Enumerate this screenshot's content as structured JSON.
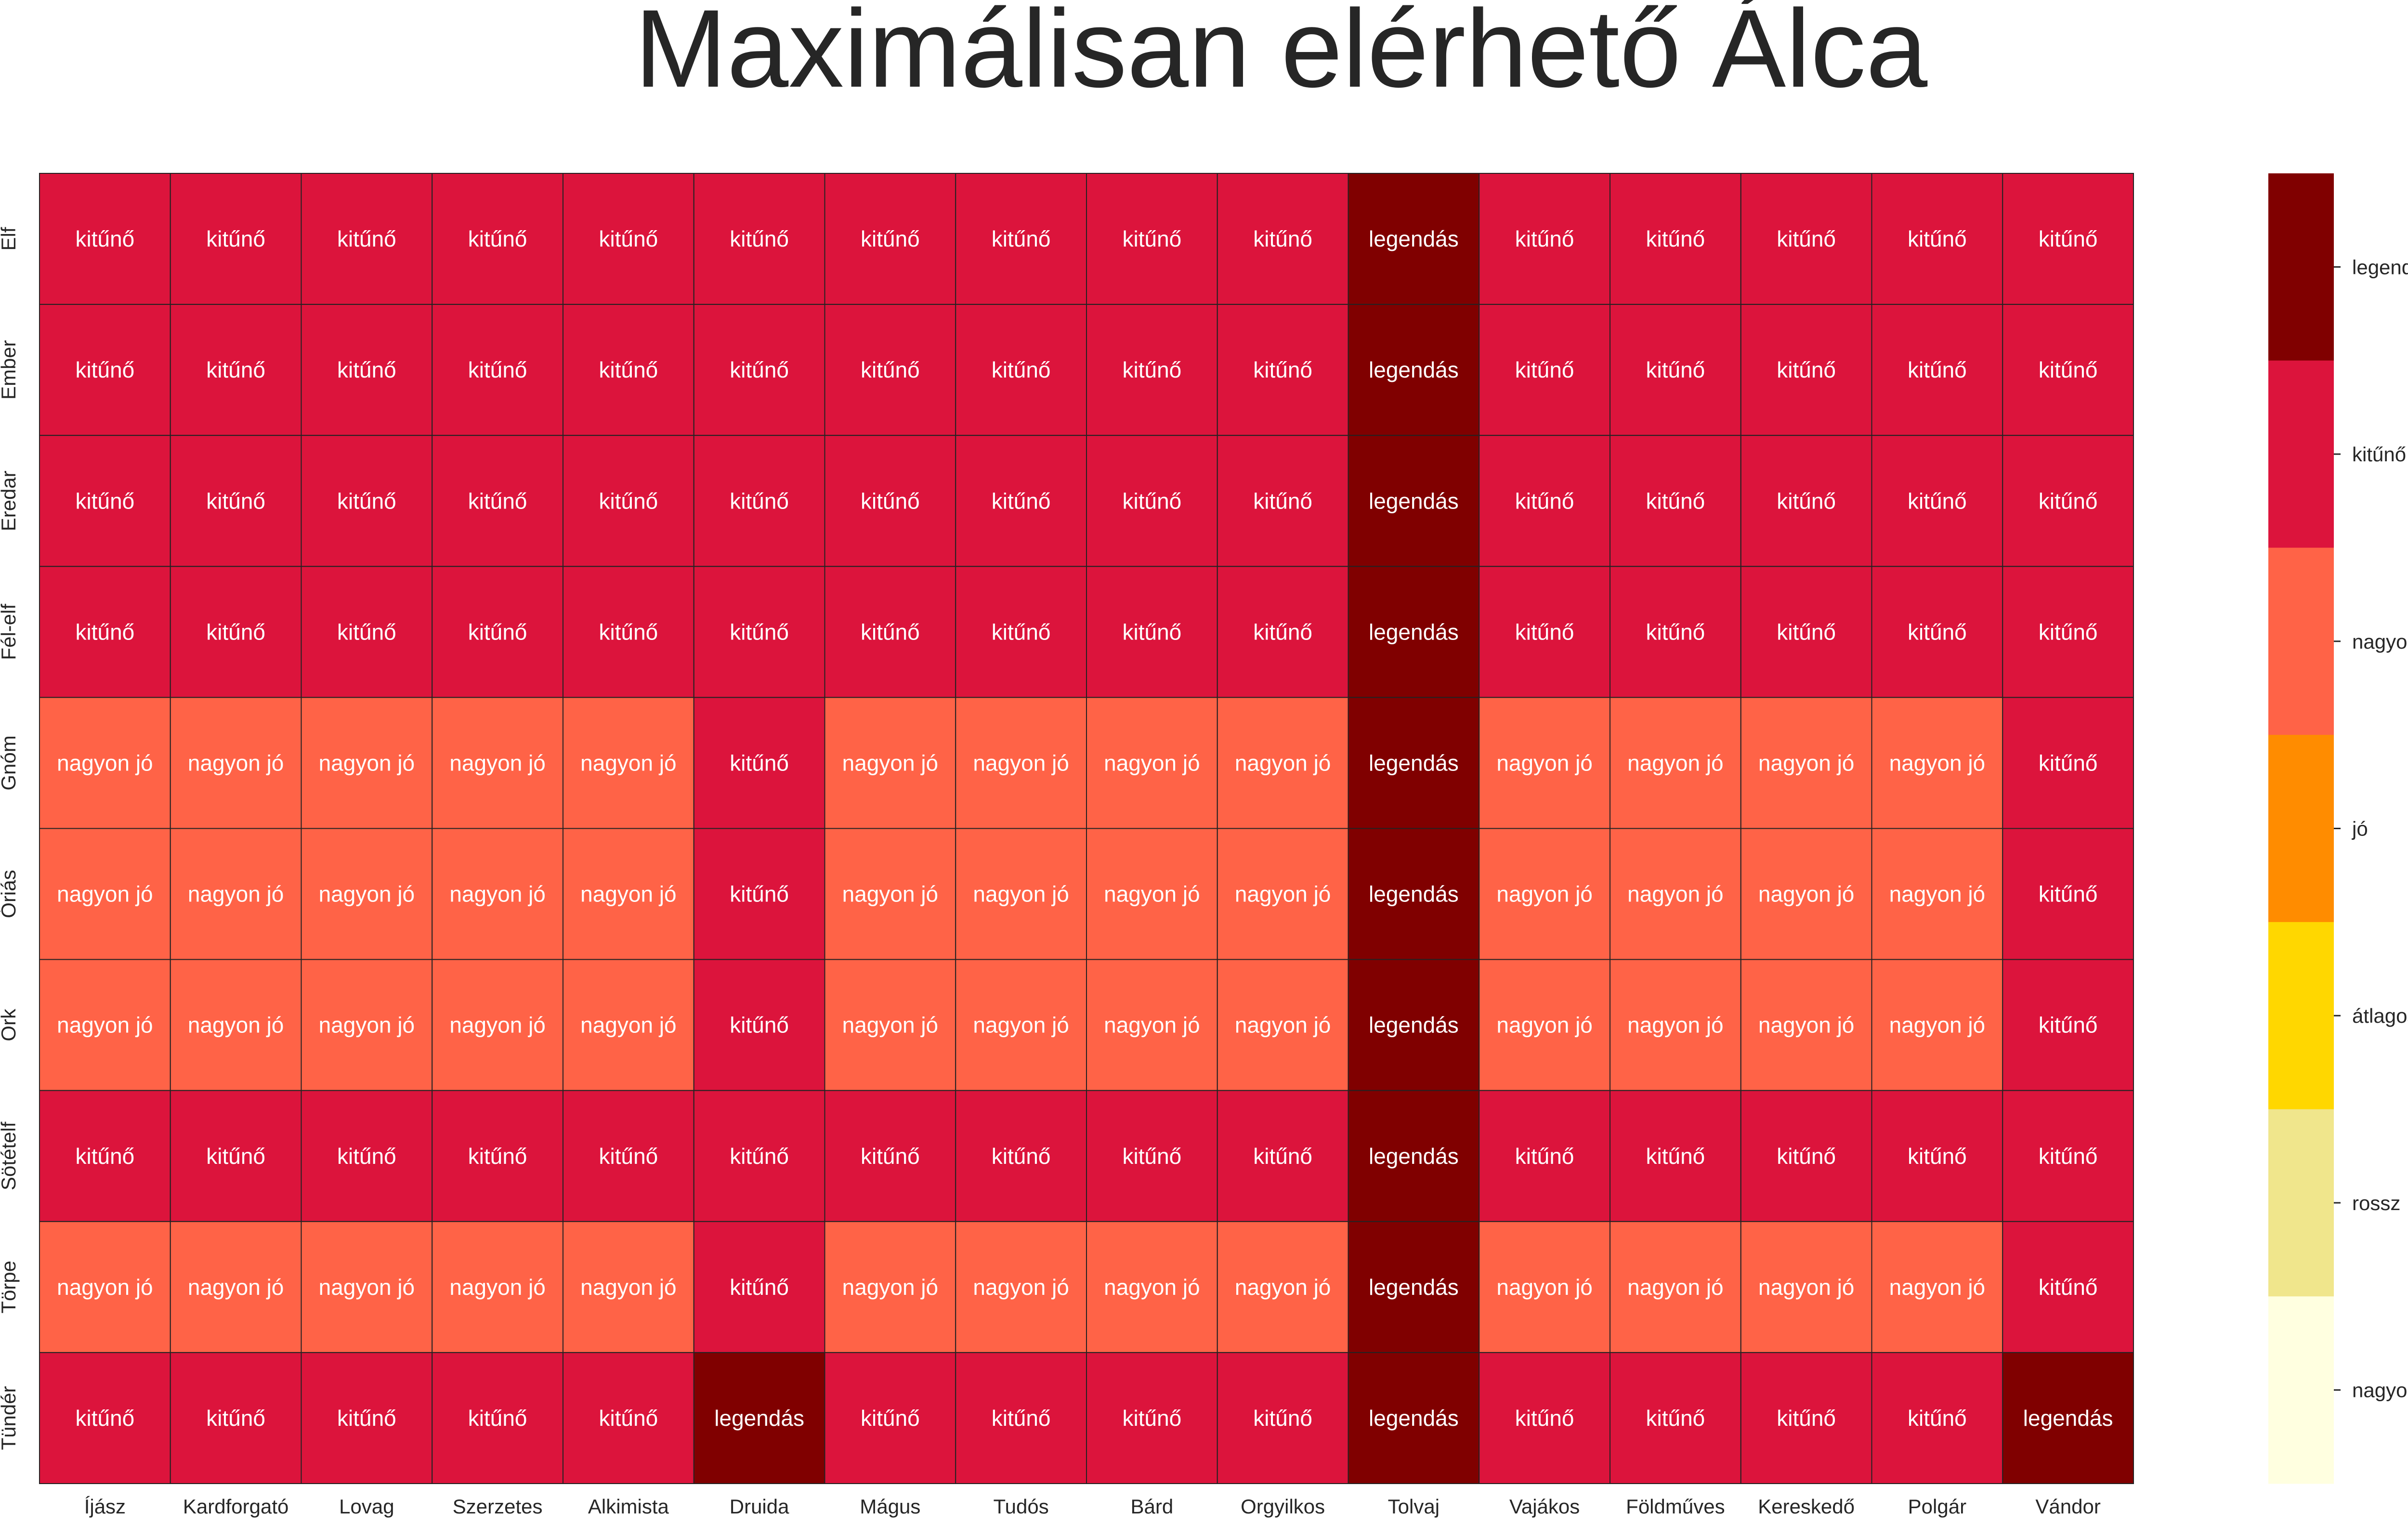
{
  "chart_data": {
    "type": "heatmap",
    "title": "Maximálisan elérhető Álca",
    "xlabel": "",
    "ylabel": "",
    "x_categories": [
      "Íjász",
      "Kardforgató",
      "Lovag",
      "Szerzetes",
      "Alkimista",
      "Druida",
      "Mágus",
      "Tudós",
      "Bárd",
      "Orgyilkos",
      "Tolvaj",
      "Vajákos",
      "Földműves",
      "Kereskedő",
      "Polgár",
      "Vándor"
    ],
    "y_categories": [
      "Elf",
      "Ember",
      "Eredar",
      "Fél-elf",
      "Gnóm",
      "Óriás",
      "Ork",
      "Sötételf",
      "Törpe",
      "Tündér"
    ],
    "levels": [
      "nagyon rossz",
      "rossz",
      "átlagos",
      "jó",
      "nagyon jó",
      "kitűnő",
      "legendás"
    ],
    "level_colors": [
      "#FFFFE0",
      "#F0E68C",
      "#FFD700",
      "#FF8C00",
      "#FF6347",
      "#DC143C",
      "#800000"
    ],
    "values": [
      [
        "kitűnő",
        "kitűnő",
        "kitűnő",
        "kitűnő",
        "kitűnő",
        "kitűnő",
        "kitűnő",
        "kitűnő",
        "kitűnő",
        "kitűnő",
        "legendás",
        "kitűnő",
        "kitűnő",
        "kitűnő",
        "kitűnő",
        "kitűnő"
      ],
      [
        "kitűnő",
        "kitűnő",
        "kitűnő",
        "kitűnő",
        "kitűnő",
        "kitűnő",
        "kitűnő",
        "kitűnő",
        "kitűnő",
        "kitűnő",
        "legendás",
        "kitűnő",
        "kitűnő",
        "kitűnő",
        "kitűnő",
        "kitűnő"
      ],
      [
        "kitűnő",
        "kitűnő",
        "kitűnő",
        "kitűnő",
        "kitűnő",
        "kitűnő",
        "kitűnő",
        "kitűnő",
        "kitűnő",
        "kitűnő",
        "legendás",
        "kitűnő",
        "kitűnő",
        "kitűnő",
        "kitűnő",
        "kitűnő"
      ],
      [
        "kitűnő",
        "kitűnő",
        "kitűnő",
        "kitűnő",
        "kitűnő",
        "kitűnő",
        "kitűnő",
        "kitűnő",
        "kitűnő",
        "kitűnő",
        "legendás",
        "kitűnő",
        "kitűnő",
        "kitűnő",
        "kitűnő",
        "kitűnő"
      ],
      [
        "nagyon jó",
        "nagyon jó",
        "nagyon jó",
        "nagyon jó",
        "nagyon jó",
        "kitűnő",
        "nagyon jó",
        "nagyon jó",
        "nagyon jó",
        "nagyon jó",
        "legendás",
        "nagyon jó",
        "nagyon jó",
        "nagyon jó",
        "nagyon jó",
        "kitűnő"
      ],
      [
        "nagyon jó",
        "nagyon jó",
        "nagyon jó",
        "nagyon jó",
        "nagyon jó",
        "kitűnő",
        "nagyon jó",
        "nagyon jó",
        "nagyon jó",
        "nagyon jó",
        "legendás",
        "nagyon jó",
        "nagyon jó",
        "nagyon jó",
        "nagyon jó",
        "kitűnő"
      ],
      [
        "nagyon jó",
        "nagyon jó",
        "nagyon jó",
        "nagyon jó",
        "nagyon jó",
        "kitűnő",
        "nagyon jó",
        "nagyon jó",
        "nagyon jó",
        "nagyon jó",
        "legendás",
        "nagyon jó",
        "nagyon jó",
        "nagyon jó",
        "nagyon jó",
        "kitűnő"
      ],
      [
        "kitűnő",
        "kitűnő",
        "kitűnő",
        "kitűnő",
        "kitűnő",
        "kitűnő",
        "kitűnő",
        "kitűnő",
        "kitűnő",
        "kitűnő",
        "legendás",
        "kitűnő",
        "kitűnő",
        "kitűnő",
        "kitűnő",
        "kitűnő"
      ],
      [
        "nagyon jó",
        "nagyon jó",
        "nagyon jó",
        "nagyon jó",
        "nagyon jó",
        "kitűnő",
        "nagyon jó",
        "nagyon jó",
        "nagyon jó",
        "nagyon jó",
        "legendás",
        "nagyon jó",
        "nagyon jó",
        "nagyon jó",
        "nagyon jó",
        "kitűnő"
      ],
      [
        "kitűnő",
        "kitűnő",
        "kitűnő",
        "kitűnő",
        "kitűnő",
        "legendás",
        "kitűnő",
        "kitűnő",
        "kitűnő",
        "kitűnő",
        "legendás",
        "kitűnő",
        "kitűnő",
        "kitűnő",
        "kitűnő",
        "legendás"
      ]
    ],
    "colorbar": {
      "position": "right"
    },
    "grid": true
  }
}
